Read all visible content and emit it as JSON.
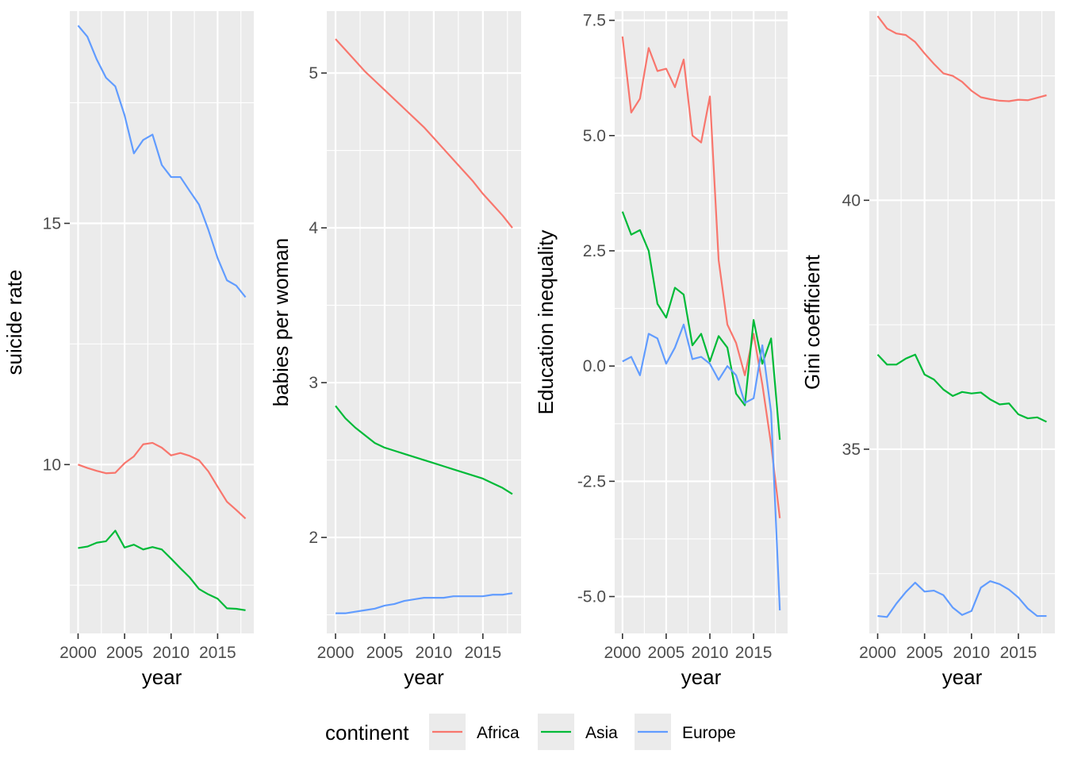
{
  "colors": {
    "panel_bg": "#EBEBEB",
    "grid_major": "#FFFFFF",
    "grid_minor": "#F3F3F3",
    "axis_text": "#4D4D4D",
    "title_text": "#000000",
    "Africa": "#F8766D",
    "Asia": "#00BA38",
    "Europe": "#619CFF"
  },
  "legend": {
    "title": "continent",
    "position": "bottom",
    "entries": [
      "Africa",
      "Asia",
      "Europe"
    ]
  },
  "chart_data": [
    {
      "type": "line",
      "xlabel": "year",
      "ylabel": "suicide rate",
      "xlim": [
        2000,
        2018
      ],
      "ylim": [
        6.5,
        19.4
      ],
      "xticks": [
        2000,
        2005,
        2010,
        2015
      ],
      "xtick_labels": [
        "2000",
        "2005",
        "2010",
        "2015"
      ],
      "yticks": [
        10,
        15
      ],
      "ytick_labels": [
        "10",
        "15"
      ],
      "grid": true,
      "x": [
        2000,
        2001,
        2002,
        2003,
        2004,
        2005,
        2006,
        2007,
        2008,
        2009,
        2010,
        2011,
        2012,
        2013,
        2014,
        2015,
        2016,
        2017,
        2018
      ],
      "series": [
        {
          "name": "Africa",
          "values": [
            10.0,
            9.93,
            9.87,
            9.82,
            9.83,
            10.03,
            10.17,
            10.42,
            10.45,
            10.35,
            10.19,
            10.24,
            10.18,
            10.09,
            9.86,
            9.54,
            9.23,
            9.06,
            8.88
          ]
        },
        {
          "name": "Asia",
          "values": [
            8.27,
            8.3,
            8.38,
            8.41,
            8.63,
            8.28,
            8.34,
            8.24,
            8.29,
            8.24,
            8.05,
            7.85,
            7.66,
            7.42,
            7.31,
            7.22,
            7.02,
            7.01,
            6.98
          ]
        },
        {
          "name": "Europe",
          "values": [
            19.1,
            18.87,
            18.4,
            18.02,
            17.84,
            17.24,
            16.45,
            16.73,
            16.84,
            16.21,
            15.96,
            15.96,
            15.67,
            15.39,
            14.87,
            14.28,
            13.82,
            13.71,
            13.47
          ]
        }
      ]
    },
    {
      "type": "line",
      "xlabel": "year",
      "ylabel": "babies per woman",
      "xlim": [
        2000,
        2018
      ],
      "ylim": [
        1.38,
        5.4
      ],
      "xticks": [
        2000,
        2005,
        2010,
        2015
      ],
      "xtick_labels": [
        "2000",
        "2005",
        "2010",
        "2015"
      ],
      "yticks": [
        2,
        3,
        4,
        5
      ],
      "ytick_labels": [
        "2",
        "3",
        "4",
        "5"
      ],
      "grid": true,
      "x": [
        2000,
        2001,
        2002,
        2003,
        2004,
        2005,
        2006,
        2007,
        2008,
        2009,
        2010,
        2011,
        2012,
        2013,
        2014,
        2015,
        2016,
        2017,
        2018
      ],
      "series": [
        {
          "name": "Africa",
          "values": [
            5.22,
            5.15,
            5.08,
            5.01,
            4.95,
            4.89,
            4.83,
            4.77,
            4.71,
            4.65,
            4.58,
            4.51,
            4.44,
            4.37,
            4.3,
            4.22,
            4.15,
            4.08,
            4.0
          ]
        },
        {
          "name": "Asia",
          "values": [
            2.85,
            2.77,
            2.71,
            2.66,
            2.61,
            2.58,
            2.56,
            2.54,
            2.52,
            2.5,
            2.48,
            2.46,
            2.44,
            2.42,
            2.4,
            2.38,
            2.35,
            2.32,
            2.28
          ]
        },
        {
          "name": "Europe",
          "values": [
            1.51,
            1.51,
            1.52,
            1.53,
            1.54,
            1.56,
            1.57,
            1.59,
            1.6,
            1.61,
            1.61,
            1.61,
            1.62,
            1.62,
            1.62,
            1.62,
            1.63,
            1.63,
            1.64
          ]
        }
      ]
    },
    {
      "type": "line",
      "xlabel": "year",
      "ylabel": "Education inequality",
      "xlim": [
        2000,
        2018
      ],
      "ylim": [
        -5.8,
        7.7
      ],
      "xticks": [
        2000,
        2005,
        2010,
        2015
      ],
      "xtick_labels": [
        "2000",
        "2005",
        "2010",
        "2015"
      ],
      "yticks": [
        -5.0,
        -2.5,
        0.0,
        2.5,
        5.0,
        7.5
      ],
      "ytick_labels": [
        "-5.0",
        "-2.5",
        "0.0",
        "2.5",
        "5.0",
        "7.5"
      ],
      "grid": true,
      "x": [
        2000,
        2001,
        2002,
        2003,
        2004,
        2005,
        2006,
        2007,
        2008,
        2009,
        2010,
        2011,
        2012,
        2013,
        2014,
        2015,
        2016,
        2017,
        2018
      ],
      "series": [
        {
          "name": "Africa",
          "values": [
            7.15,
            5.5,
            5.8,
            6.9,
            6.4,
            6.45,
            6.05,
            6.65,
            5.0,
            4.85,
            5.85,
            2.3,
            0.9,
            0.5,
            -0.2,
            0.7,
            -0.4,
            -1.7,
            -3.3
          ]
        },
        {
          "name": "Asia",
          "values": [
            3.35,
            2.85,
            2.95,
            2.5,
            1.35,
            1.05,
            1.7,
            1.55,
            0.45,
            0.7,
            0.1,
            0.65,
            0.4,
            -0.6,
            -0.85,
            1.0,
            0.05,
            0.6,
            -1.6
          ]
        },
        {
          "name": "Europe",
          "values": [
            0.1,
            0.2,
            -0.2,
            0.7,
            0.6,
            0.05,
            0.4,
            0.9,
            0.15,
            0.2,
            0.05,
            -0.3,
            0.0,
            -0.2,
            -0.8,
            -0.7,
            0.45,
            -1.0,
            -5.3
          ]
        }
      ]
    },
    {
      "type": "line",
      "xlabel": "year",
      "ylabel": "Gini coefficient",
      "xlim": [
        2000,
        2018
      ],
      "ylim": [
        31.3,
        43.8
      ],
      "xticks": [
        2000,
        2005,
        2010,
        2015
      ],
      "xtick_labels": [
        "2000",
        "2005",
        "2010",
        "2015"
      ],
      "yticks": [
        35,
        40
      ],
      "ytick_labels": [
        "35",
        "40"
      ],
      "grid": true,
      "x": [
        2000,
        2001,
        2002,
        2003,
        2004,
        2005,
        2006,
        2007,
        2008,
        2009,
        2010,
        2011,
        2012,
        2013,
        2014,
        2015,
        2016,
        2017,
        2018
      ],
      "series": [
        {
          "name": "Africa",
          "values": [
            43.7,
            43.45,
            43.35,
            43.32,
            43.18,
            42.95,
            42.74,
            42.55,
            42.5,
            42.38,
            42.2,
            42.07,
            42.03,
            42.0,
            41.99,
            42.02,
            42.01,
            42.06,
            42.11
          ]
        },
        {
          "name": "Asia",
          "values": [
            36.9,
            36.7,
            36.7,
            36.82,
            36.9,
            36.5,
            36.4,
            36.2,
            36.07,
            36.15,
            36.12,
            36.14,
            36.0,
            35.9,
            35.92,
            35.7,
            35.62,
            35.64,
            35.55
          ]
        },
        {
          "name": "Europe",
          "values": [
            31.65,
            31.63,
            31.9,
            32.13,
            32.32,
            32.14,
            32.16,
            32.07,
            31.82,
            31.67,
            31.75,
            32.22,
            32.35,
            32.29,
            32.18,
            32.02,
            31.8,
            31.65,
            31.65
          ]
        }
      ]
    }
  ]
}
